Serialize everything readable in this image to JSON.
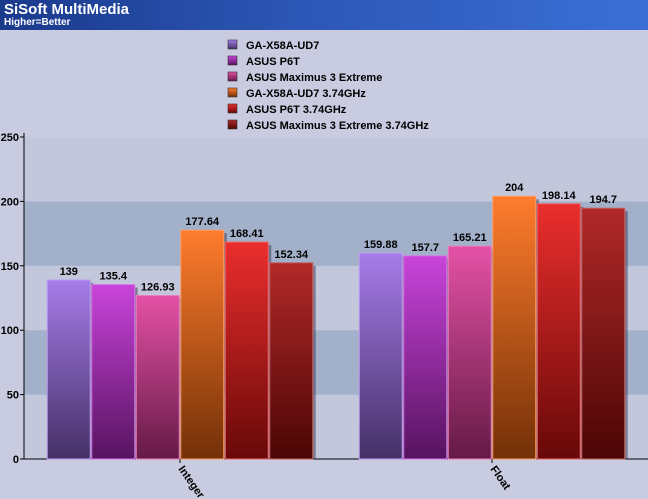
{
  "header": {
    "title": "SiSoft MultiMedia",
    "subtitle": "Higher=Better"
  },
  "chart_data": {
    "type": "bar",
    "categories": [
      "Integer",
      "Float"
    ],
    "series": [
      {
        "name": "GA-X58A-UD7",
        "values": [
          139,
          159.88
        ],
        "labels": [
          "139",
          "159.88"
        ],
        "color": "#9a6ae6"
      },
      {
        "name": "ASUS P6T",
        "values": [
          135.4,
          157.7
        ],
        "labels": [
          "135.4",
          "157.7"
        ],
        "color": "#c22ad6"
      },
      {
        "name": "ASUS Maximus 3 Extreme",
        "values": [
          126.93,
          165.21
        ],
        "labels": [
          "126.93",
          "165.21"
        ],
        "color": "#e0399a"
      },
      {
        "name": "GA-X58A-UD7 3.74GHz",
        "values": [
          177.64,
          204
        ],
        "labels": [
          "177.64",
          "204"
        ],
        "color": "#ff6a10"
      },
      {
        "name": "ASUS P6T 3.74GHz",
        "values": [
          168.41,
          198.14
        ],
        "labels": [
          "168.41",
          "198.14"
        ],
        "color": "#e81212"
      },
      {
        "name": "ASUS Maximus 3 Extreme 3.74GHz",
        "values": [
          152.34,
          194.7
        ],
        "labels": [
          "152.34",
          "194.7"
        ],
        "color": "#a80c0c"
      }
    ],
    "yticks": [
      "0",
      "50",
      "100",
      "150",
      "200",
      "250"
    ],
    "ylim": [
      0,
      250
    ],
    "grid": true,
    "legend_position": "top-center"
  }
}
